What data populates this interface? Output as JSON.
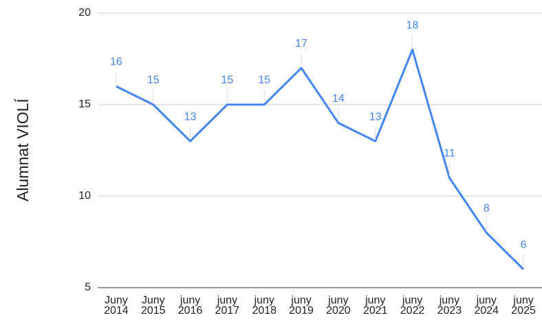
{
  "chart_data": {
    "type": "line",
    "y_label": "Alumnat VIOLÍ",
    "categories": [
      "Juny 2014",
      "Juny 2015",
      "juny 2016",
      "juny 2017",
      "juny 2018",
      "juny 2019",
      "juny 2020",
      "juny 2021",
      "juny 2022",
      "juny 2023",
      "juny 2024",
      "juny 2025"
    ],
    "series": [
      {
        "name": "Alumnat VIOLÍ",
        "color": "#4285f4",
        "values": [
          16,
          15,
          13,
          15,
          15,
          17,
          14,
          13,
          18,
          11,
          8,
          6
        ]
      }
    ],
    "ylim": [
      5,
      20
    ],
    "yticks": [
      5,
      10,
      15,
      20
    ],
    "grid": true,
    "data_labels": true
  }
}
